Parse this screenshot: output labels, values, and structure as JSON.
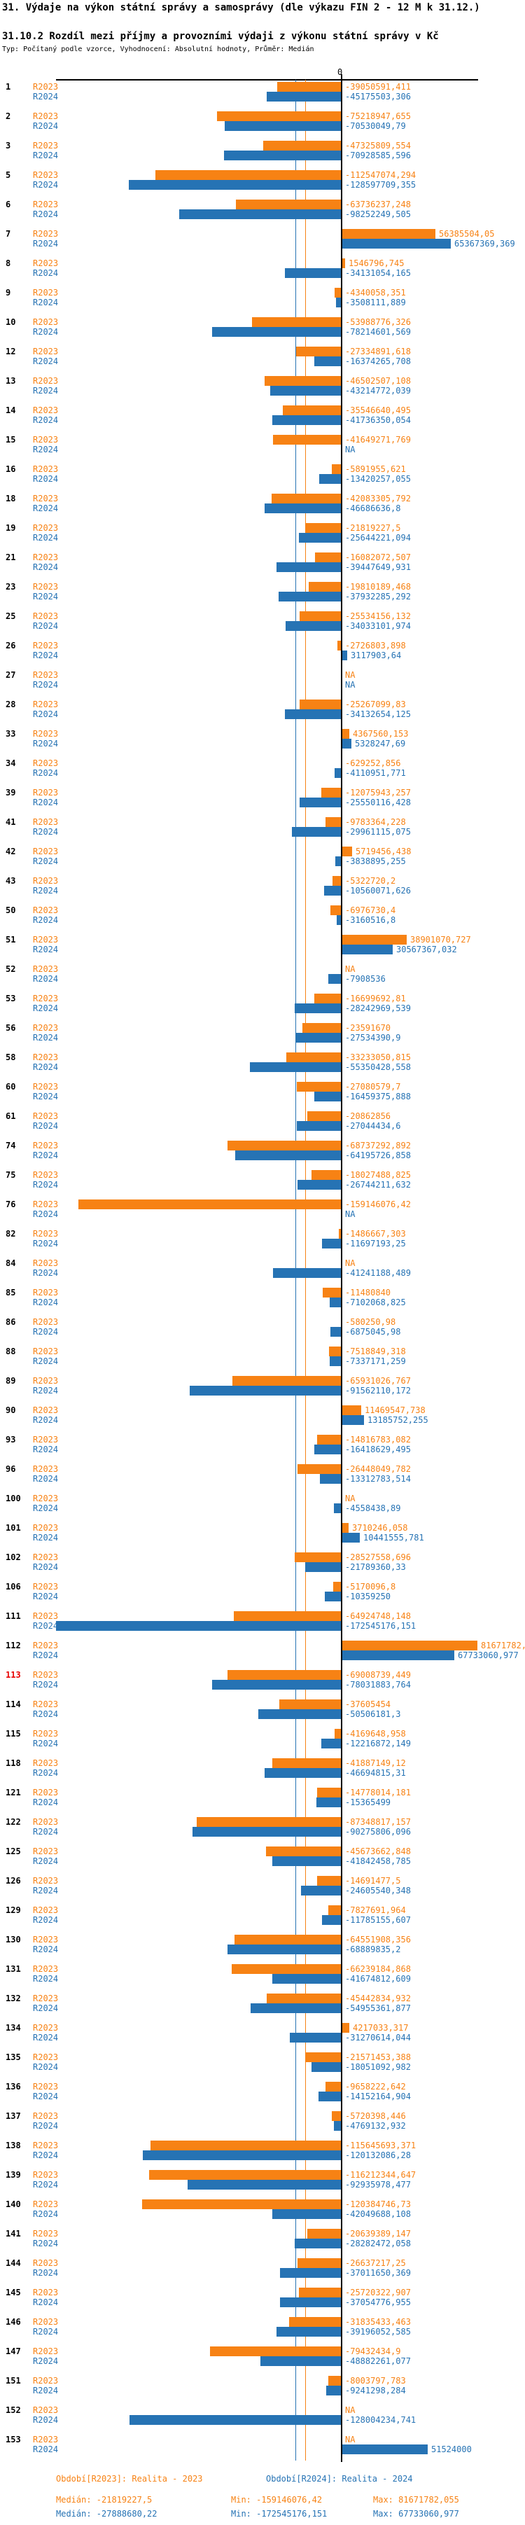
{
  "header": {
    "title": "31. Výdaje na výkon státní správy a samosprávy (dle výkazu FIN 2 - 12 M k 31.12.)",
    "subtitle": "31.10.2 Rozdíl mezi příjmy a provozními výdaji z výkonu státní správy v Kč",
    "meta": "Typ: Počítaný podle vzorce, Vyhodnocení: Absolutní hodnoty, Průměr: Medián"
  },
  "chart_data": {
    "type": "bar",
    "orientation": "horizontal",
    "value_unit": "Kč",
    "zero_tick_label": "0",
    "axis": {
      "x_min": -172545176.151,
      "x_max": 81671782.055,
      "zero_line": true,
      "median_guides": true
    },
    "legend_position": "bottom",
    "highlighted_row_id": "113",
    "series": [
      {
        "name": "R2023",
        "color": "#f78214",
        "period_label": "Období[R2023]: Realita - 2023",
        "median": "-21819227,5",
        "min": "-159146076,42",
        "max": "81671782,055"
      },
      {
        "name": "R2024",
        "color": "#2673b4",
        "period_label": "Období[R2024]: Realita - 2024",
        "median": "-27888680,22",
        "min": "-172545176,151",
        "max": "67733060,977"
      }
    ],
    "rows": [
      {
        "id": "1",
        "r2023": "-39050591,411",
        "r2024": "-45175503,306"
      },
      {
        "id": "2",
        "r2023": "-75218947,655",
        "r2024": "-70530049,79"
      },
      {
        "id": "3",
        "r2023": "-47325809,554",
        "r2024": "-70928585,596"
      },
      {
        "id": "5",
        "r2023": "-112547074,294",
        "r2024": "-128597709,355"
      },
      {
        "id": "6",
        "r2023": "-63736237,248",
        "r2024": "-98252249,505"
      },
      {
        "id": "7",
        "r2023": "56385504,05",
        "r2024": "65367369,369"
      },
      {
        "id": "8",
        "r2023": "1546796,745",
        "r2024": "-34131054,165"
      },
      {
        "id": "9",
        "r2023": "-4340058,351",
        "r2024": "-3508111,889"
      },
      {
        "id": "10",
        "r2023": "-53988776,326",
        "r2024": "-78214601,569"
      },
      {
        "id": "12",
        "r2023": "-27334891,618",
        "r2024": "-16374265,708"
      },
      {
        "id": "13",
        "r2023": "-46502507,108",
        "r2024": "-43214772,039"
      },
      {
        "id": "14",
        "r2023": "-35546640,495",
        "r2024": "-41736350,054"
      },
      {
        "id": "15",
        "r2023": "-41649271,769",
        "r2024": "NA"
      },
      {
        "id": "16",
        "r2023": "-5891955,621",
        "r2024": "-13420257,055"
      },
      {
        "id": "18",
        "r2023": "-42083305,792",
        "r2024": "-46686636,8"
      },
      {
        "id": "19",
        "r2023": "-21819227,5",
        "r2024": "-25644221,094"
      },
      {
        "id": "21",
        "r2023": "-16082072,507",
        "r2024": "-39447649,931"
      },
      {
        "id": "23",
        "r2023": "-19810189,468",
        "r2024": "-37932285,292"
      },
      {
        "id": "25",
        "r2023": "-25534156,132",
        "r2024": "-34033101,974"
      },
      {
        "id": "26",
        "r2023": "-2726803,898",
        "r2024": "3117903,64"
      },
      {
        "id": "27",
        "r2023": "NA",
        "r2024": "NA"
      },
      {
        "id": "28",
        "r2023": "-25267099,83",
        "r2024": "-34132654,125"
      },
      {
        "id": "33",
        "r2023": "4367560,153",
        "r2024": "5328247,69"
      },
      {
        "id": "34",
        "r2023": "-629252,856",
        "r2024": "-4110951,771"
      },
      {
        "id": "39",
        "r2023": "-12075943,257",
        "r2024": "-25550116,428"
      },
      {
        "id": "41",
        "r2023": "-9783364,228",
        "r2024": "-29961115,075"
      },
      {
        "id": "42",
        "r2023": "5719456,438",
        "r2024": "-3838895,255"
      },
      {
        "id": "43",
        "r2023": "-5322720,2",
        "r2024": "-10560071,626"
      },
      {
        "id": "50",
        "r2023": "-6976730,4",
        "r2024": "-3160516,8"
      },
      {
        "id": "51",
        "r2023": "38901070,727",
        "r2024": "30567367,032"
      },
      {
        "id": "52",
        "r2023": "NA",
        "r2024": "-7908536"
      },
      {
        "id": "53",
        "r2023": "-16699692,81",
        "r2024": "-28242969,539"
      },
      {
        "id": "56",
        "r2023": "-23591670",
        "r2024": "-27534390,9"
      },
      {
        "id": "58",
        "r2023": "-33233050,815",
        "r2024": "-55350428,558"
      },
      {
        "id": "60",
        "r2023": "-27080579,7",
        "r2024": "-16459375,888"
      },
      {
        "id": "61",
        "r2023": "-20862856",
        "r2024": "-27044434,6"
      },
      {
        "id": "74",
        "r2023": "-68737292,892",
        "r2024": "-64195726,858"
      },
      {
        "id": "75",
        "r2023": "-18027488,825",
        "r2024": "-26744211,632"
      },
      {
        "id": "76",
        "r2023": "-159146076,42",
        "r2024": "NA"
      },
      {
        "id": "82",
        "r2023": "-1486667,303",
        "r2024": "-11697193,25"
      },
      {
        "id": "84",
        "r2023": "NA",
        "r2024": "-41241188,489"
      },
      {
        "id": "85",
        "r2023": "-11480840",
        "r2024": "-7102068,825"
      },
      {
        "id": "86",
        "r2023": "-580250,98",
        "r2024": "-6875045,98"
      },
      {
        "id": "88",
        "r2023": "-7518849,318",
        "r2024": "-7337171,259"
      },
      {
        "id": "89",
        "r2023": "-65931026,767",
        "r2024": "-91562110,172"
      },
      {
        "id": "90",
        "r2023": "11469547,738",
        "r2024": "13185752,255"
      },
      {
        "id": "93",
        "r2023": "-14816783,082",
        "r2024": "-16418629,495"
      },
      {
        "id": "96",
        "r2023": "-26448049,782",
        "r2024": "-13312783,514"
      },
      {
        "id": "100",
        "r2023": "NA",
        "r2024": "-4558438,89"
      },
      {
        "id": "101",
        "r2023": "3710246,058",
        "r2024": "10441555,781"
      },
      {
        "id": "102",
        "r2023": "-28527558,696",
        "r2024": "-21789360,33"
      },
      {
        "id": "106",
        "r2023": "-5170096,8",
        "r2024": "-10359250"
      },
      {
        "id": "111",
        "r2023": "-64924748,148",
        "r2024": "-172545176,151"
      },
      {
        "id": "112",
        "r2023": "81671782,055",
        "r2024": "67733060,977"
      },
      {
        "id": "113",
        "r2023": "-69008739,449",
        "r2024": "-78031883,764"
      },
      {
        "id": "114",
        "r2023": "-37605454",
        "r2024": "-50506181,3"
      },
      {
        "id": "115",
        "r2023": "-4169648,958",
        "r2024": "-12216872,149"
      },
      {
        "id": "118",
        "r2023": "-41887149,12",
        "r2024": "-46694815,31"
      },
      {
        "id": "121",
        "r2023": "-14778014,181",
        "r2024": "-15365499"
      },
      {
        "id": "122",
        "r2023": "-87348817,157",
        "r2024": "-90275806,096"
      },
      {
        "id": "125",
        "r2023": "-45673662,848",
        "r2024": "-41842458,785"
      },
      {
        "id": "126",
        "r2023": "-14691477,5",
        "r2024": "-24605540,348"
      },
      {
        "id": "129",
        "r2023": "-7827691,964",
        "r2024": "-11785155,607"
      },
      {
        "id": "130",
        "r2023": "-64551908,356",
        "r2024": "-68889835,2"
      },
      {
        "id": "131",
        "r2023": "-66239184,868",
        "r2024": "-41674812,609"
      },
      {
        "id": "132",
        "r2023": "-45442834,932",
        "r2024": "-54955361,877"
      },
      {
        "id": "134",
        "r2023": "4217033,317",
        "r2024": "-31270614,044"
      },
      {
        "id": "135",
        "r2023": "-21571453,388",
        "r2024": "-18051092,982"
      },
      {
        "id": "136",
        "r2023": "-9658222,642",
        "r2024": "-14152164,904"
      },
      {
        "id": "137",
        "r2023": "-5720398,446",
        "r2024": "-4769132,932"
      },
      {
        "id": "138",
        "r2023": "-115645693,371",
        "r2024": "-120132086,28"
      },
      {
        "id": "139",
        "r2023": "-116212344,647",
        "r2024": "-92935978,477"
      },
      {
        "id": "140",
        "r2023": "-120384746,73",
        "r2024": "-42049688,108"
      },
      {
        "id": "141",
        "r2023": "-20639389,147",
        "r2024": "-28282472,058"
      },
      {
        "id": "144",
        "r2023": "-26637217,25",
        "r2024": "-37011650,369"
      },
      {
        "id": "145",
        "r2023": "-25720322,907",
        "r2024": "-37054776,955"
      },
      {
        "id": "146",
        "r2023": "-31835433,463",
        "r2024": "-39196052,585"
      },
      {
        "id": "147",
        "r2023": "-79432434,9",
        "r2024": "-48882261,077"
      },
      {
        "id": "151",
        "r2023": "-8003797,783",
        "r2024": "-9241298,284"
      },
      {
        "id": "152",
        "r2023": "NA",
        "r2024": "-128004234,741"
      },
      {
        "id": "153",
        "r2023": "NA",
        "r2024": "51524000"
      }
    ]
  },
  "footer": {
    "period_r2023": "Období[R2023]: Realita - 2023",
    "period_r2024": "Období[R2024]: Realita - 2024",
    "median_r2023": "Medián: -21819227,5",
    "min_r2023": "Min: -159146076,42",
    "max_r2023": "Max: 81671782,055",
    "median_r2024": "Medián: -27888680,22",
    "min_r2024": "Min: -172545176,151",
    "max_r2024": "Max: 67733060,977"
  }
}
